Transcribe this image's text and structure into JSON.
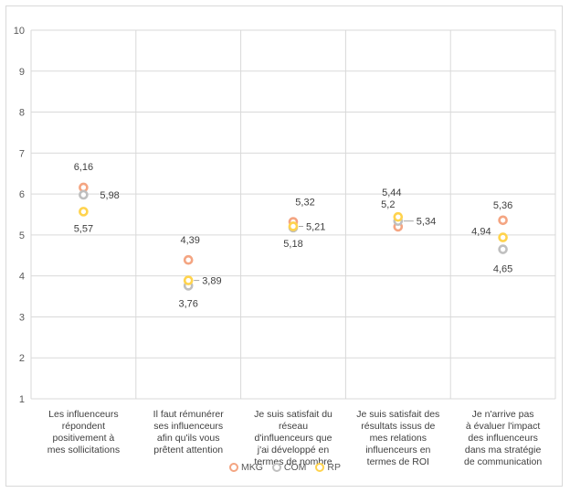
{
  "chart_data": {
    "type": "scatter",
    "title": "",
    "xlabel": "",
    "ylabel": "",
    "ylim": [
      1,
      10
    ],
    "yticks": [
      1,
      2,
      3,
      4,
      5,
      6,
      7,
      8,
      9,
      10
    ],
    "grid": true,
    "legend_position": "bottom",
    "categories": [
      "Les influenceurs répondent positivement à mes sollicitations",
      "Il faut rémunérer ses influenceurs afin qu'ils vous prêtent attention",
      "Je suis satisfait du réseau d'influenceurs que j'ai développé en termes de nombre",
      "Je suis satisfait des résultats issus de mes relations influenceurs en termes de ROI",
      "Je n'arrive pas à évaluer l'impact des influenceurs dans ma stratégie de communication"
    ],
    "category_lines": [
      [
        "Les influenceurs",
        "répondent",
        "positivement à",
        "mes sollicitations"
      ],
      [
        "Il faut rémunérer",
        "ses influenceurs",
        "afin qu'ils vous",
        "prêtent attention"
      ],
      [
        "Je suis satisfait du",
        "réseau",
        "d'influenceurs que",
        "j'ai développé en",
        "termes de nombre"
      ],
      [
        "Je suis satisfait des",
        "résultats issus de",
        "mes relations",
        "influenceurs en",
        "termes de ROI"
      ],
      [
        "Je n'arrive pas",
        "à évaluer l'impact",
        "des influenceurs",
        "dans ma stratégie",
        "de communication"
      ]
    ],
    "series": [
      {
        "name": "MKG",
        "color": "#f4a582",
        "values": [
          6.16,
          4.39,
          5.32,
          5.2,
          5.36
        ],
        "labels": [
          "6,16",
          "4,39",
          "5,32",
          "5,2",
          "5,36"
        ]
      },
      {
        "name": "COM",
        "color": "#bfbfbf",
        "values": [
          5.98,
          3.76,
          5.18,
          5.34,
          4.65
        ],
        "labels": [
          "5,98",
          "3,76",
          "5,18",
          "5,34",
          "4,65"
        ]
      },
      {
        "name": "RP",
        "color": "#ffd34d",
        "values": [
          5.57,
          3.89,
          5.21,
          5.44,
          4.94
        ],
        "labels": [
          "5,57",
          "3,89",
          "5,21",
          "5,44",
          "4,94"
        ]
      }
    ]
  }
}
